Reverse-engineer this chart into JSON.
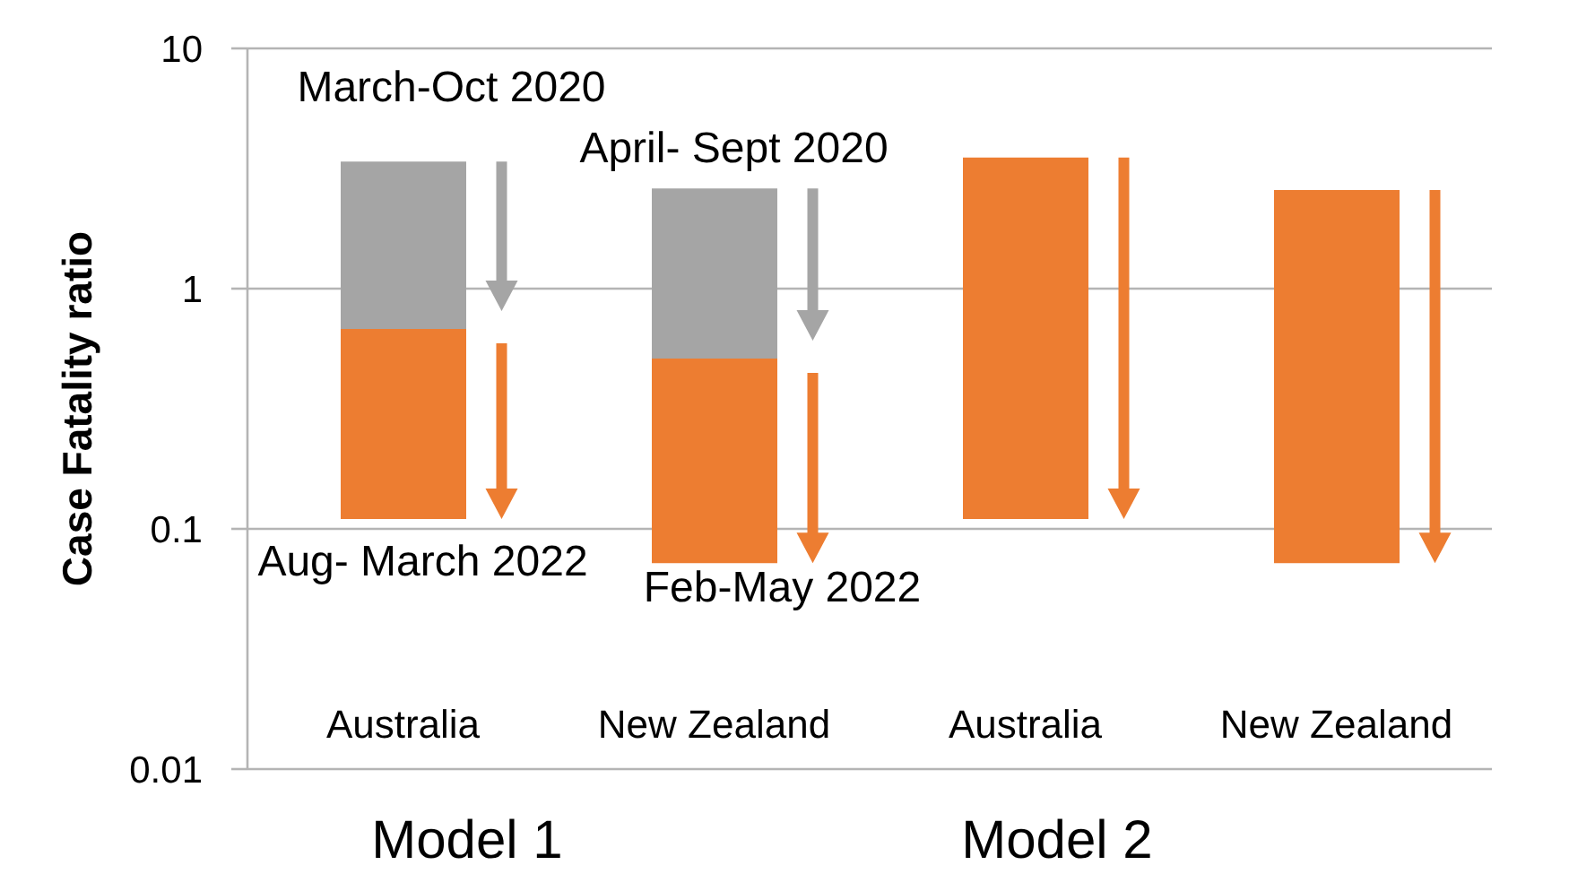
{
  "chart_data": {
    "type": "bar",
    "ylabel": "Case Fatality ratio",
    "categories": [
      "Australia",
      "New Zealand",
      "Australia",
      "New Zealand"
    ],
    "stacked": true,
    "series": [
      {
        "color": "#ed7d31",
        "base": [
          0.11,
          0.072,
          0.11,
          0.072
        ],
        "values": [
          0.57,
          0.44,
          3.4,
          2.5
        ]
      },
      {
        "color": "#a5a5a5",
        "values": [
          2.7,
          2.1,
          null,
          null
        ]
      }
    ],
    "ylim": [
      0.01,
      10
    ],
    "yticks": [
      0.01,
      0.1,
      1,
      10
    ],
    "log": true,
    "grid": "y",
    "annotations": [
      "March-Oct 2020",
      "April- Sept 2020",
      "Aug- March 2022",
      "Feb-May 2022",
      "Model 1",
      "Model 2"
    ]
  }
}
